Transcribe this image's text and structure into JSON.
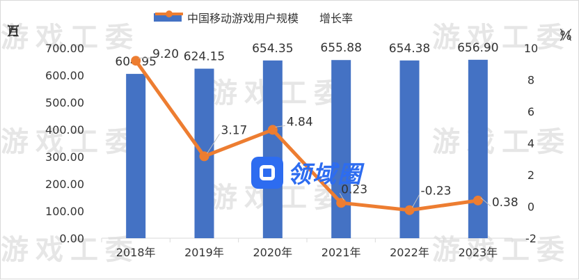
{
  "legend": {
    "bar_label": "中国移动游戏用户规模",
    "line_label": "增长率"
  },
  "axis_labels": {
    "left": [
      "（",
      "百",
      "万",
      "）"
    ],
    "right": [
      "（",
      "%",
      "）"
    ]
  },
  "watermark": "游戏工委",
  "logo_text": "领域圈",
  "colors": {
    "bar": "#4472c4",
    "line": "#ed7d31",
    "text": "#333333"
  },
  "chart_data": {
    "type": "bar+line",
    "categories": [
      "2018年",
      "2019年",
      "2020年",
      "2021年",
      "2022年",
      "2023年"
    ],
    "series": [
      {
        "name": "中国移动游戏用户规模",
        "type": "bar",
        "axis": "left",
        "values": [
          604.95,
          624.15,
          654.35,
          655.88,
          654.38,
          656.9
        ],
        "labels": [
          "604.95",
          "624.15",
          "654.35",
          "655.88",
          "654.38",
          "656.90"
        ]
      },
      {
        "name": "增长率",
        "type": "line",
        "axis": "right",
        "values": [
          9.2,
          3.17,
          4.84,
          0.23,
          -0.23,
          0.38
        ],
        "labels": [
          "9.20",
          "3.17",
          "4.84",
          "0.23",
          "-0.23",
          "0.38"
        ]
      }
    ],
    "y_left": {
      "min": 0,
      "max": 700,
      "ticks": [
        "0.00",
        "100.00",
        "200.00",
        "300.00",
        "400.00",
        "500.00",
        "600.00",
        "700.00"
      ]
    },
    "y_right": {
      "min": -2,
      "max": 10,
      "ticks": [
        "-2",
        "0",
        "2",
        "4",
        "6",
        "8",
        "10"
      ]
    },
    "legend_position": "top-center",
    "grid": false
  }
}
